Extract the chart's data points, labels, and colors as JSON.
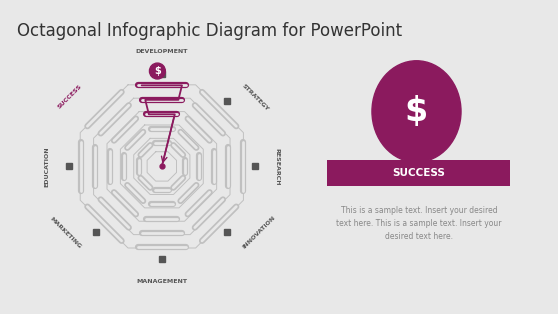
{
  "title": "Octagonal Infographic Diagram for PowerPoint",
  "title_fontsize": 12,
  "bg_color": "#e8e8e8",
  "primary_color": "#8b1a5e",
  "octagon_color": "#c0c0c0",
  "labels": [
    "SUCCESS",
    "EDUCATION",
    "MARKETING",
    "MANAGEMENT",
    "INNOVATION",
    "RESEARCH",
    "STRATEGY",
    "DEVELOPMENT"
  ],
  "success_label": "SUCCESS",
  "sample_text": "This is a sample text. Insert your desired\ntext here. This is a sample text. Insert your\ndesired text here.",
  "text_color": "#888888",
  "label_color_normal": "#555555",
  "label_color_success": "#8b1a5e",
  "n_rings": 5
}
